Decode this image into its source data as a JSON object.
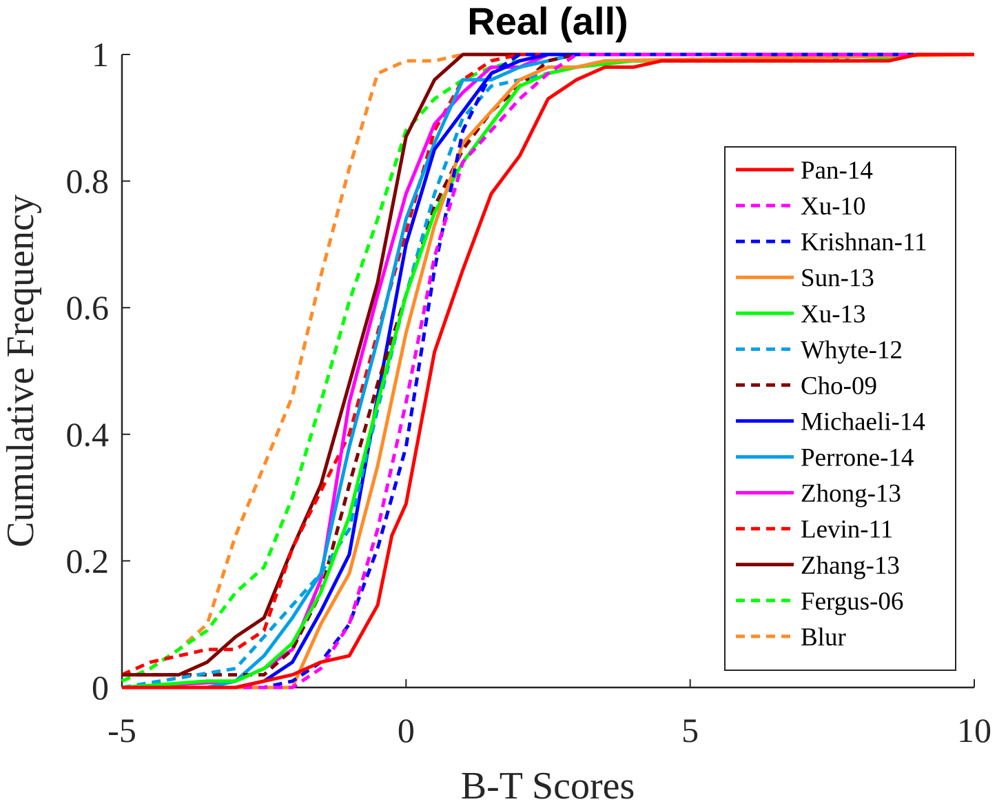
{
  "chart_data": {
    "type": "line",
    "title": "Real (all)",
    "xlabel": "B-T Scores",
    "ylabel": "Cumulative Frequency",
    "xlim": [
      -5,
      10
    ],
    "ylim": [
      0,
      1
    ],
    "xticks": [
      -5,
      0,
      5,
      10
    ],
    "xtick_labels": [
      "-5",
      "0",
      "5",
      "10"
    ],
    "yticks": [
      0,
      0.2,
      0.4,
      0.6,
      0.8,
      1
    ],
    "ytick_labels": [
      "0",
      "0.2",
      "0.4",
      "0.6",
      "0.8",
      "1"
    ],
    "grid": false,
    "legend_position": "right, lower-middle",
    "series": [
      {
        "name": "Pan-14",
        "color": "#ff0000",
        "dash": false,
        "x": [
          -5,
          -4.5,
          -4,
          -3.5,
          -3,
          -2.5,
          -2,
          -1.5,
          -1,
          -0.5,
          -0.25,
          0,
          0.5,
          1,
          1.5,
          2,
          2.5,
          3,
          3.5,
          4,
          4.5,
          5,
          6,
          7,
          8,
          8.5,
          9,
          10
        ],
        "y": [
          0,
          0,
          0,
          0,
          0,
          0.01,
          0.02,
          0.04,
          0.05,
          0.13,
          0.24,
          0.29,
          0.53,
          0.66,
          0.78,
          0.84,
          0.93,
          0.96,
          0.98,
          0.98,
          0.99,
          0.99,
          0.99,
          0.99,
          0.99,
          0.99,
          1,
          1
        ]
      },
      {
        "name": "Xu-10",
        "color": "#ff00ff",
        "dash": true,
        "x": [
          -5,
          -2,
          -1.5,
          -1,
          -0.5,
          0,
          0.5,
          1,
          1.5,
          2,
          2.5,
          3,
          10
        ],
        "y": [
          0,
          0,
          0.03,
          0.1,
          0.25,
          0.45,
          0.68,
          0.83,
          0.88,
          0.93,
          0.97,
          1,
          1
        ]
      },
      {
        "name": "Krishnan-11",
        "color": "#0000ff",
        "dash": true,
        "x": [
          -5,
          -2.5,
          -2,
          -1.5,
          -1,
          -0.5,
          0,
          0.5,
          1,
          1.5,
          2,
          10
        ],
        "y": [
          0,
          0,
          0.01,
          0.04,
          0.1,
          0.22,
          0.38,
          0.66,
          0.88,
          0.97,
          1,
          1
        ]
      },
      {
        "name": "Sun-13",
        "color": "#ff8c28",
        "dash": false,
        "x": [
          -5,
          -2,
          -1.5,
          -1,
          -0.5,
          0,
          0.5,
          1,
          1.5,
          2,
          2.5,
          3,
          3.5,
          10
        ],
        "y": [
          0,
          0,
          0.1,
          0.18,
          0.35,
          0.56,
          0.73,
          0.86,
          0.91,
          0.96,
          0.98,
          0.98,
          0.99,
          1
        ]
      },
      {
        "name": "Xu-13",
        "color": "#00ff00",
        "dash": false,
        "x": [
          -5,
          -3.5,
          -3,
          -2.5,
          -2,
          -1.5,
          -1,
          -0.5,
          0,
          0.5,
          1,
          1.5,
          2,
          2.5,
          3,
          4,
          5,
          6,
          7,
          8,
          9,
          10
        ],
        "y": [
          0,
          0.01,
          0.01,
          0.03,
          0.07,
          0.15,
          0.27,
          0.45,
          0.62,
          0.75,
          0.83,
          0.89,
          0.95,
          0.97,
          0.98,
          0.99,
          0.99,
          0.99,
          0.99,
          0.99,
          1,
          1
        ]
      },
      {
        "name": "Whyte-12",
        "color": "#00a0e6",
        "dash": true,
        "x": [
          -5,
          -3,
          -2.5,
          -2,
          -1.5,
          -1,
          -0.5,
          0,
          0.5,
          1,
          1.5,
          2,
          2.5,
          3,
          3.5,
          4,
          5,
          6,
          7,
          7.5,
          8,
          10
        ],
        "y": [
          0,
          0.03,
          0.08,
          0.13,
          0.18,
          0.25,
          0.44,
          0.62,
          0.78,
          0.9,
          0.95,
          0.96,
          0.97,
          0.98,
          0.99,
          0.99,
          0.99,
          0.99,
          0.99,
          0.99,
          1,
          1
        ]
      },
      {
        "name": "Cho-09",
        "color": "#800000",
        "dash": true,
        "x": [
          -5,
          -4,
          -3.5,
          -3,
          -2.5,
          -2,
          -1.5,
          -1,
          -0.5,
          0,
          0.5,
          1,
          1.5,
          2,
          2.5,
          3,
          10
        ],
        "y": [
          0.02,
          0.02,
          0.02,
          0.02,
          0.02,
          0.06,
          0.15,
          0.32,
          0.48,
          0.62,
          0.76,
          0.85,
          0.91,
          0.95,
          0.99,
          1,
          1
        ]
      },
      {
        "name": "Michaeli-14",
        "color": "#0000ff",
        "dash": false,
        "x": [
          -5,
          -3,
          -2.5,
          -2,
          -1.5,
          -1,
          -0.5,
          0,
          0.5,
          1,
          1.5,
          2,
          2.5,
          10
        ],
        "y": [
          0,
          0,
          0.01,
          0.04,
          0.12,
          0.21,
          0.46,
          0.7,
          0.85,
          0.91,
          0.97,
          0.99,
          1,
          1
        ]
      },
      {
        "name": "Perrone-14",
        "color": "#00a0e6",
        "dash": false,
        "x": [
          -5,
          -3.5,
          -3,
          -2.5,
          -2,
          -1.5,
          -1,
          -0.5,
          0,
          0.5,
          1,
          1.5,
          2,
          2.5,
          3,
          10
        ],
        "y": [
          0,
          0,
          0.01,
          0.05,
          0.11,
          0.18,
          0.38,
          0.55,
          0.74,
          0.86,
          0.96,
          0.96,
          0.98,
          0.99,
          1,
          1
        ]
      },
      {
        "name": "Zhong-13",
        "color": "#ff00ff",
        "dash": false,
        "x": [
          -5,
          -3,
          -2.5,
          -2,
          -1.5,
          -1,
          -0.5,
          0,
          0.5,
          1,
          1.5,
          2,
          2.5,
          10
        ],
        "y": [
          0,
          0.01,
          0.03,
          0.06,
          0.17,
          0.45,
          0.62,
          0.78,
          0.89,
          0.94,
          0.98,
          0.98,
          1,
          1
        ]
      },
      {
        "name": "Levin-11",
        "color": "#ff0000",
        "dash": true,
        "x": [
          -5,
          -4.5,
          -4,
          -3.5,
          -3,
          -2.5,
          -2,
          -1.5,
          -1,
          -0.5,
          0,
          0.5,
          1,
          1.5,
          2,
          10
        ],
        "y": [
          0.02,
          0.04,
          0.05,
          0.06,
          0.06,
          0.09,
          0.22,
          0.31,
          0.4,
          0.56,
          0.72,
          0.88,
          0.96,
          0.99,
          1,
          1
        ]
      },
      {
        "name": "Zhang-13",
        "color": "#800000",
        "dash": false,
        "x": [
          -5,
          -4,
          -3.5,
          -3,
          -2.5,
          -2,
          -1.5,
          -1,
          -0.5,
          0,
          0.5,
          1,
          10
        ],
        "y": [
          0.02,
          0.02,
          0.04,
          0.08,
          0.11,
          0.22,
          0.32,
          0.48,
          0.64,
          0.87,
          0.96,
          1,
          1
        ]
      },
      {
        "name": "Fergus-06",
        "color": "#00ff00",
        "dash": true,
        "x": [
          -5,
          -4.5,
          -4,
          -3.5,
          -3,
          -2.5,
          -2,
          -1.5,
          -1,
          -0.5,
          0,
          0.5,
          1,
          1.5,
          2,
          2.5,
          10
        ],
        "y": [
          0.01,
          0.03,
          0.06,
          0.09,
          0.15,
          0.19,
          0.3,
          0.45,
          0.61,
          0.74,
          0.88,
          0.93,
          0.96,
          0.98,
          0.99,
          1,
          1
        ]
      },
      {
        "name": "Blur",
        "color": "#ff8c28",
        "dash": true,
        "x": [
          -5,
          -4.5,
          -4,
          -3.5,
          -3,
          -2.5,
          -2,
          -1.5,
          -1,
          -0.5,
          0,
          0.5,
          1,
          10
        ],
        "y": [
          0.01,
          0.03,
          0.06,
          0.1,
          0.24,
          0.35,
          0.46,
          0.65,
          0.82,
          0.97,
          0.99,
          0.99,
          1,
          1
        ]
      }
    ]
  }
}
